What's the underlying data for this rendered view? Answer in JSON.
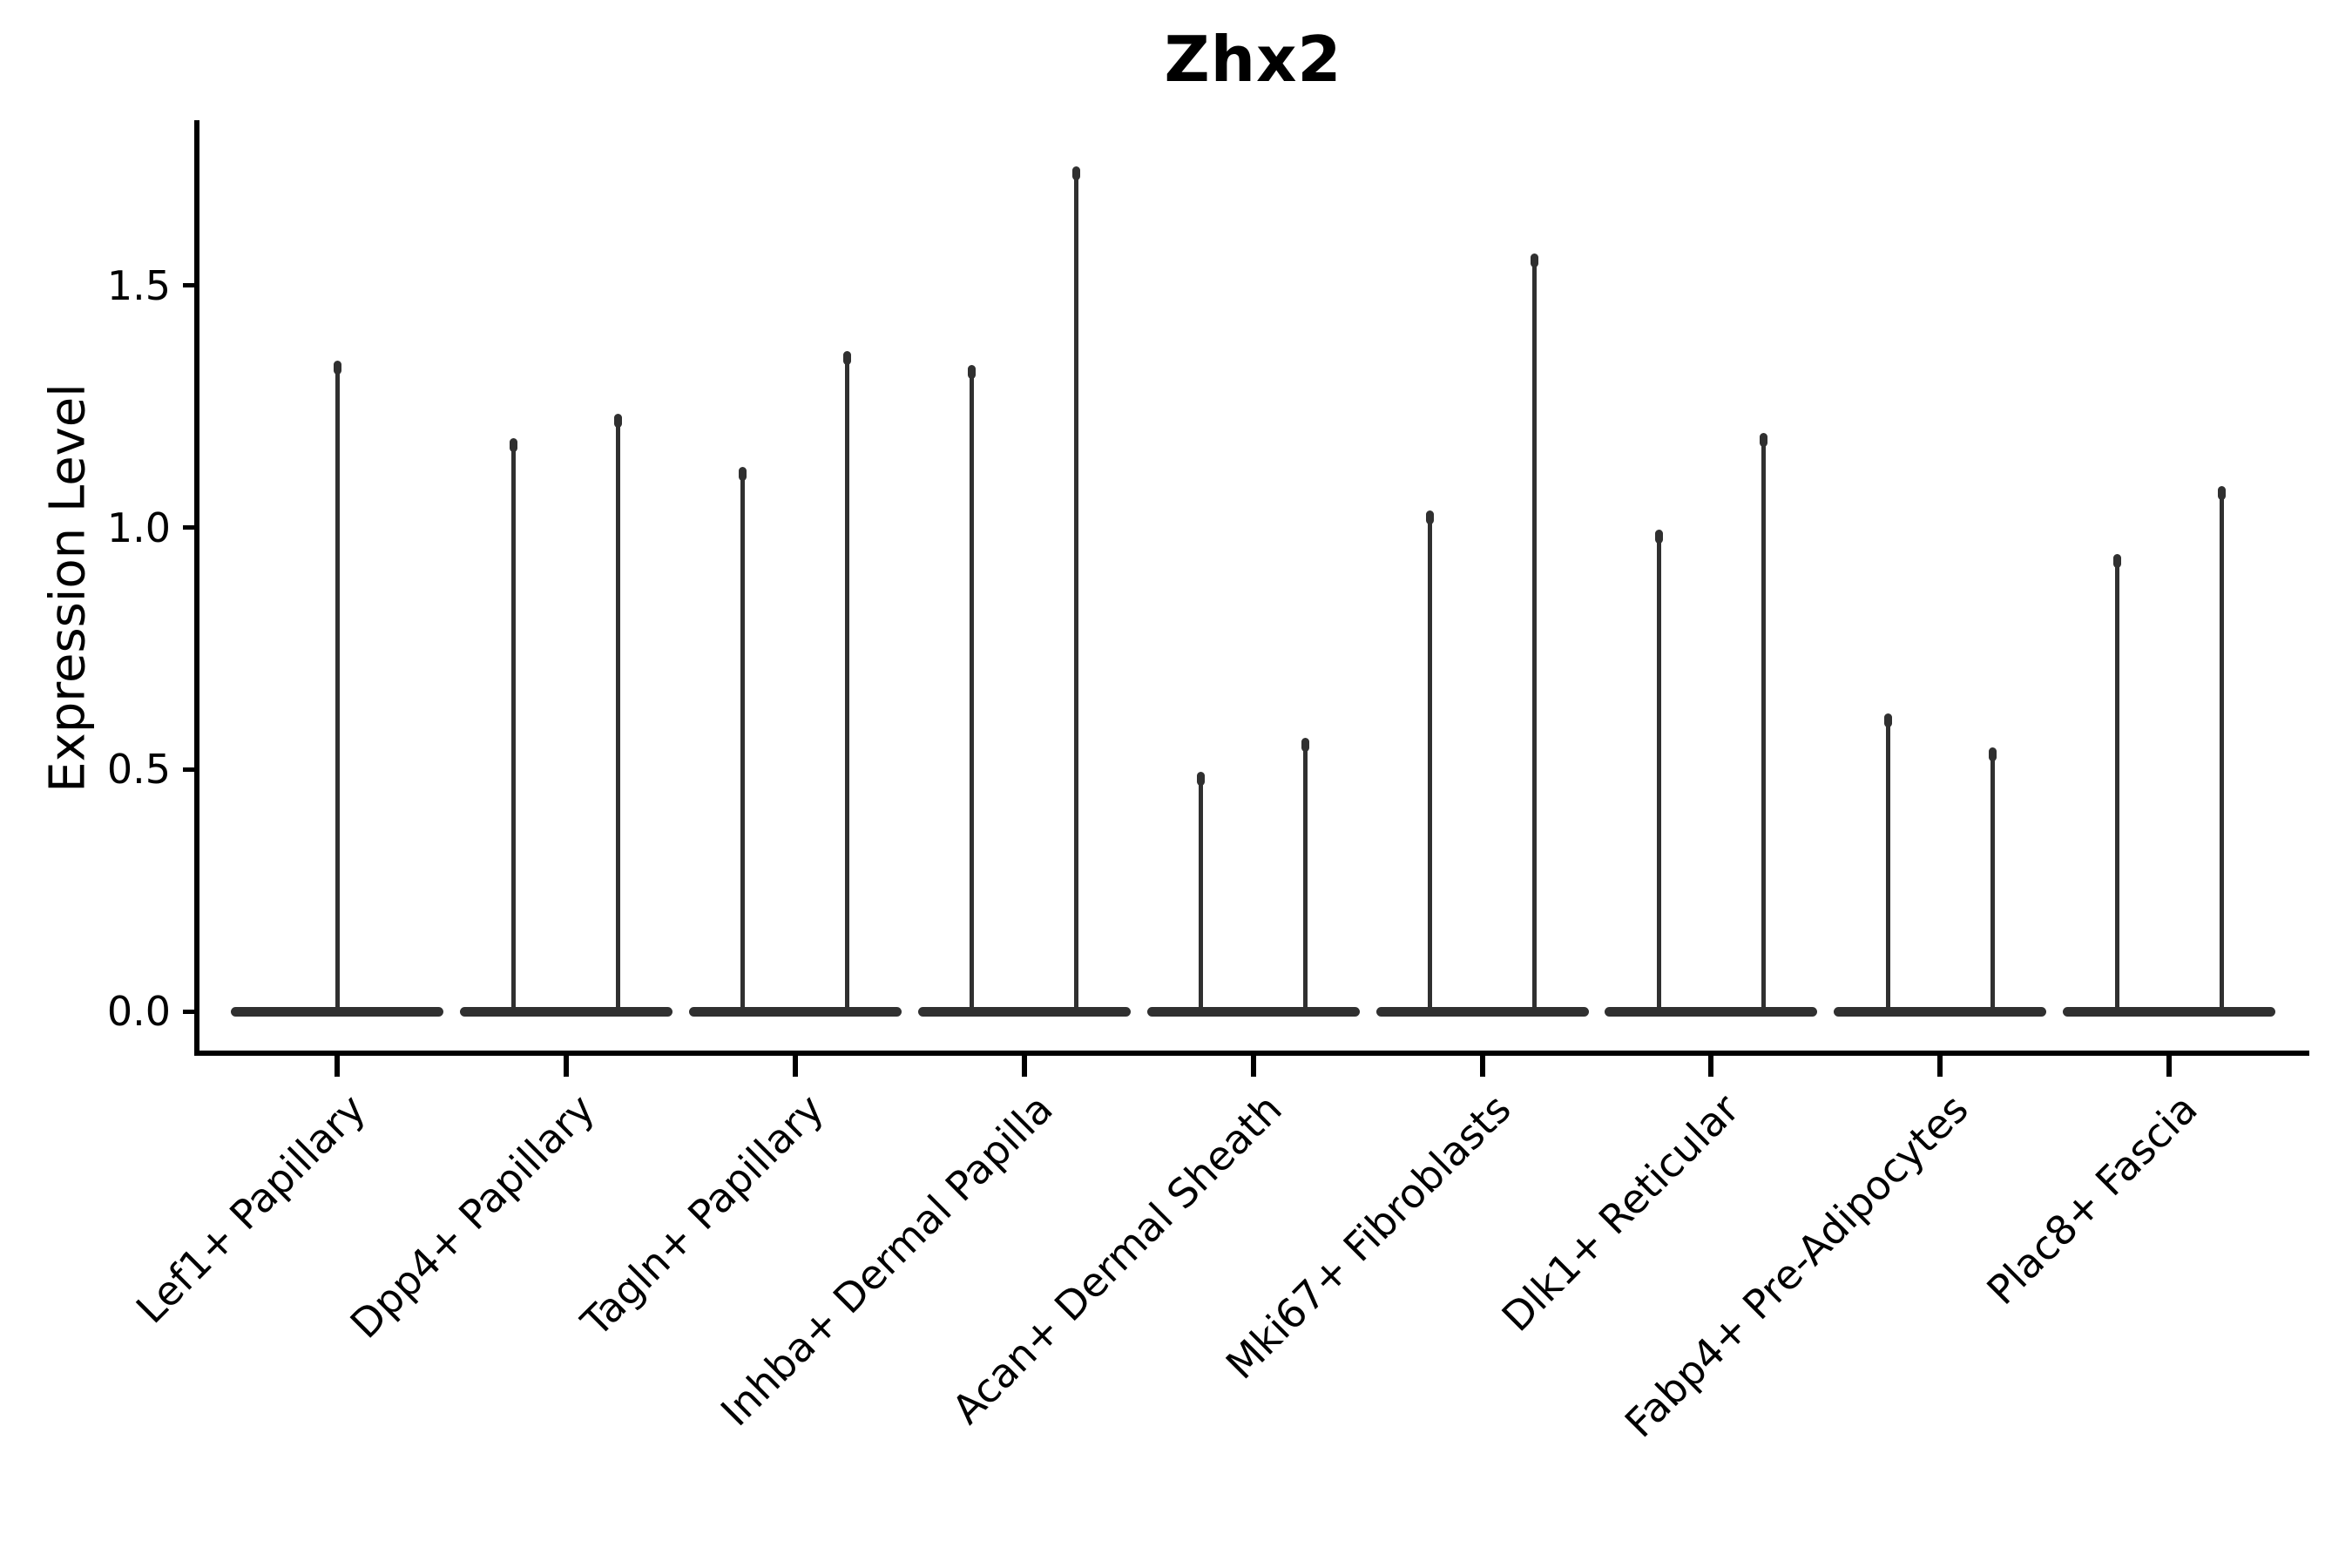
{
  "title": "Zhx2",
  "ylabel": "Expression Level",
  "chart_data": {
    "type": "violin",
    "title": "Zhx2",
    "xlabel": "",
    "ylabel": "Expression Level",
    "ylim": [
      -0.09,
      1.84
    ],
    "yticks": [
      0.0,
      0.5,
      1.0,
      1.5
    ],
    "ytick_labels": [
      "0.0",
      "0.5",
      "1.0",
      "1.5"
    ],
    "grid": false,
    "legend": false,
    "notes": "Nearly all mass at 0: each violin renders as a wide flat base at y=0 plus thin vertical density spike(s) reaching the max expression value. Categories 2-9 contain a split pair of violins (left/right); category 1 has a single centered violin.",
    "categories": [
      "Lef1+ Papillary",
      "Dpp4+ Papillary",
      "Tagln+ Papillary",
      "Inhba+ Dermal Papilla",
      "Acan+ Dermal Sheath",
      "Mki67+ Fibroblasts",
      "Dlk1+ Reticular",
      "Fabp4+ Pre-Adipocytes",
      "Plac8+ Fascia"
    ],
    "violins": [
      {
        "category": "Lef1+ Papillary",
        "spikes": [
          {
            "position": "center",
            "max": 1.34
          }
        ]
      },
      {
        "category": "Dpp4+ Papillary",
        "spikes": [
          {
            "position": "left",
            "max": 1.18
          },
          {
            "position": "right",
            "max": 1.23
          }
        ]
      },
      {
        "category": "Tagln+ Papillary",
        "spikes": [
          {
            "position": "left",
            "max": 1.12
          },
          {
            "position": "right",
            "max": 1.36
          }
        ]
      },
      {
        "category": "Inhba+ Dermal Papilla",
        "spikes": [
          {
            "position": "left",
            "max": 1.33
          },
          {
            "position": "right",
            "max": 1.74
          }
        ]
      },
      {
        "category": "Acan+ Dermal Sheath",
        "spikes": [
          {
            "position": "left",
            "max": 0.49
          },
          {
            "position": "right",
            "max": 0.56
          }
        ]
      },
      {
        "category": "Mki67+ Fibroblasts",
        "spikes": [
          {
            "position": "left",
            "max": 1.03
          },
          {
            "position": "right",
            "max": 1.56
          }
        ]
      },
      {
        "category": "Dlk1+ Reticular",
        "spikes": [
          {
            "position": "left",
            "max": 0.99
          },
          {
            "position": "right",
            "max": 1.19
          }
        ]
      },
      {
        "category": "Fabp4+ Pre-Adipocytes",
        "spikes": [
          {
            "position": "left",
            "max": 0.61
          },
          {
            "position": "right",
            "max": 0.54
          }
        ]
      },
      {
        "category": "Plac8+ Fascia",
        "spikes": [
          {
            "position": "left",
            "max": 0.94
          },
          {
            "position": "right",
            "max": 1.08
          }
        ]
      }
    ],
    "colors": {
      "violin": "#303030",
      "axis": "#000000",
      "text": "#000000",
      "background": "#ffffff"
    }
  }
}
